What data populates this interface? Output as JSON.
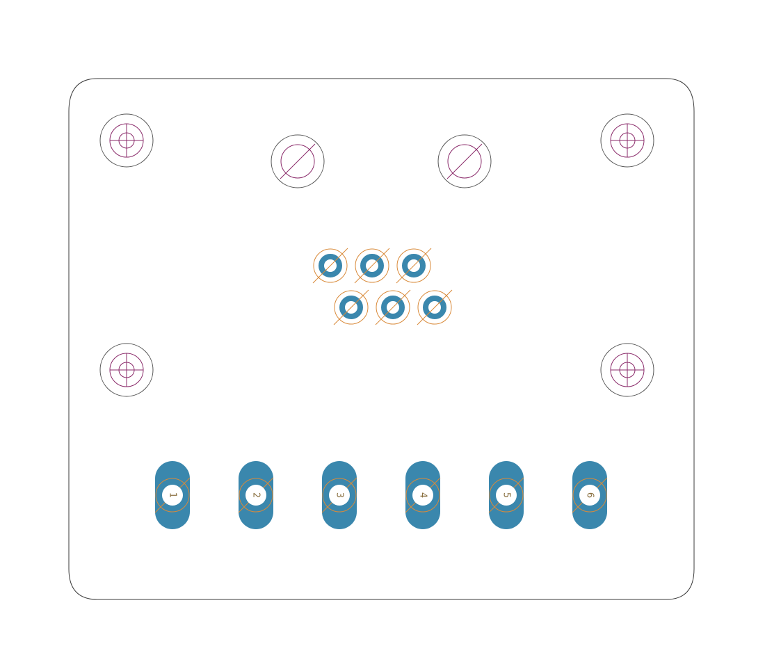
{
  "colors": {
    "background": "#ffffff",
    "board_outline": "#3a3a3a",
    "copper_pad": "#3a87ad",
    "drill_hole": "#ffffff",
    "silkscreen_orange": "#d98a3a",
    "mounting_hole_mark": "#8a2a6a",
    "mounting_ring": "#555555",
    "pad_label_text": "#8a7040"
  },
  "icons": {
    "mounting_hole": "crosshair-circle-icon",
    "standoff_hole": "slashed-circle-icon",
    "via": "ring-icon"
  },
  "pads": {
    "labels": [
      "1",
      "2",
      "3",
      "4",
      "5",
      "6"
    ]
  }
}
